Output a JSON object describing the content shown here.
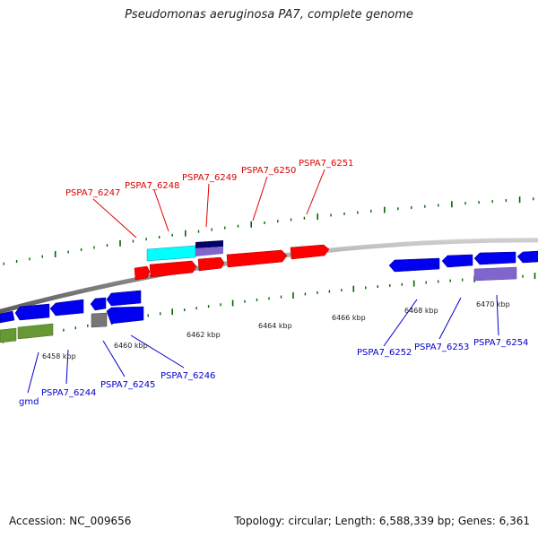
{
  "title": "Pseudomonas aeruginosa PA7, complete genome",
  "footer": {
    "accession": "Accession: NC_009656",
    "summary": "Topology: circular; Length: 6,588,339 bp; Genes: 6,361"
  },
  "colors": {
    "backbone": "#888888",
    "forward_gene": "#ff0000",
    "reverse_gene": "#0000ee",
    "highlight_cyan": "#00ffff",
    "navy": "#000066",
    "purple": "#8066cc",
    "olive": "#669933",
    "gray_gene": "#777777",
    "tick": "#006600",
    "label_red": "#dd0000",
    "label_blue": "#0000cc"
  },
  "kbp_labels": [
    "6458 kbp",
    "6460 kbp",
    "6462 kbp",
    "6464 kbp",
    "6466 kbp",
    "6468 kbp",
    "6470 kbp"
  ],
  "gene_labels_top": [
    "PSPA7_6247",
    "PSPA7_6248",
    "PSPA7_6249",
    "PSPA7_6250",
    "PSPA7_6251"
  ],
  "gene_labels_bottom": [
    "gmd",
    "PSPA7_6244",
    "PSPA7_6245",
    "PSPA7_6246",
    "PSPA7_6252",
    "PSPA7_6253",
    "PSPA7_6254"
  ]
}
